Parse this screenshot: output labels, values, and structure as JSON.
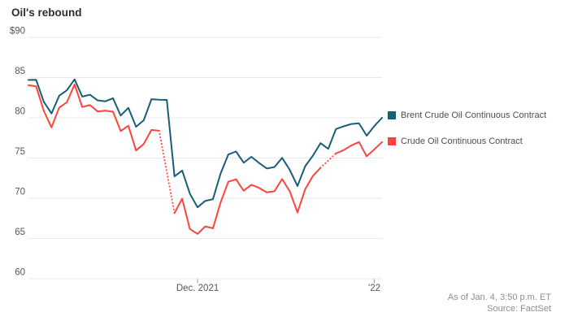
{
  "title": "Oil's rebound",
  "legend": {
    "items": [
      {
        "label": "Brent Crude Oil Continuous Contract"
      },
      {
        "label": "Crude Oil Continuous Contract"
      }
    ]
  },
  "footer": {
    "as_of": "As of Jan. 4, 3:50 p.m. ET",
    "source": "Source: FactSet"
  },
  "chart_data": {
    "type": "line",
    "title": "Oil's rebound",
    "ylabel": "",
    "xlabel": "",
    "ylim": [
      60,
      90
    ],
    "y_ticks": [
      {
        "value": 90,
        "label": "$90"
      },
      {
        "value": 85,
        "label": "85"
      },
      {
        "value": 80,
        "label": "80"
      },
      {
        "value": 75,
        "label": "75"
      },
      {
        "value": 70,
        "label": "70"
      },
      {
        "value": 65,
        "label": "65"
      },
      {
        "value": 60,
        "label": "60"
      }
    ],
    "x_ticks": [
      {
        "index": 22,
        "label": "Dec. 2021"
      },
      {
        "index": 45,
        "label": "'22"
      }
    ],
    "grid": "horizontal",
    "legend_position": "right",
    "gridline_color": "#e8e8e8",
    "axis_text_color": "#555555",
    "x": [
      "2021-11-01",
      "2021-11-02",
      "2021-11-03",
      "2021-11-04",
      "2021-11-05",
      "2021-11-08",
      "2021-11-09",
      "2021-11-10",
      "2021-11-11",
      "2021-11-12",
      "2021-11-15",
      "2021-11-16",
      "2021-11-17",
      "2021-11-18",
      "2021-11-19",
      "2021-11-22",
      "2021-11-23",
      "2021-11-24",
      "2021-11-25",
      "2021-11-26",
      "2021-11-29",
      "2021-11-30",
      "2021-12-01",
      "2021-12-02",
      "2021-12-03",
      "2021-12-06",
      "2021-12-07",
      "2021-12-08",
      "2021-12-09",
      "2021-12-10",
      "2021-12-13",
      "2021-12-14",
      "2021-12-15",
      "2021-12-16",
      "2021-12-17",
      "2021-12-20",
      "2021-12-21",
      "2021-12-22",
      "2021-12-23",
      "2021-12-24",
      "2021-12-27",
      "2021-12-28",
      "2021-12-29",
      "2021-12-30",
      "2021-12-31",
      "2022-01-03",
      "2022-01-04"
    ],
    "series": [
      {
        "name": "Crude Oil Continuous Contract",
        "color": "#fa453e",
        "gap_style": "dotted",
        "values": [
          84.05,
          83.91,
          80.86,
          78.81,
          81.27,
          81.93,
          84.15,
          81.34,
          81.59,
          80.79,
          80.88,
          80.76,
          78.36,
          79.01,
          75.94,
          76.75,
          78.5,
          78.39,
          null,
          68.15,
          69.95,
          66.18,
          65.57,
          66.5,
          66.26,
          69.49,
          72.05,
          72.36,
          70.94,
          71.67,
          71.29,
          70.73,
          70.87,
          72.38,
          70.86,
          68.23,
          71.12,
          72.76,
          73.79,
          null,
          75.57,
          75.98,
          76.56,
          76.99,
          75.21,
          76.08,
          76.99
        ]
      },
      {
        "name": "Brent Crude Oil Continuous Contract",
        "color": "#175e78",
        "gap_style": "dotted",
        "values": [
          84.71,
          84.72,
          81.99,
          80.54,
          82.74,
          83.43,
          84.78,
          82.64,
          82.87,
          82.17,
          82.05,
          82.43,
          80.28,
          81.24,
          78.89,
          79.7,
          82.31,
          82.25,
          82.22,
          72.72,
          73.44,
          70.57,
          68.87,
          69.67,
          69.88,
          73.08,
          75.44,
          75.82,
          74.42,
          75.15,
          74.39,
          73.7,
          73.88,
          75.02,
          73.52,
          71.52,
          73.98,
          75.29,
          76.85,
          76.14,
          78.6,
          78.94,
          79.23,
          79.32,
          77.78,
          78.98,
          80.0
        ]
      }
    ]
  }
}
